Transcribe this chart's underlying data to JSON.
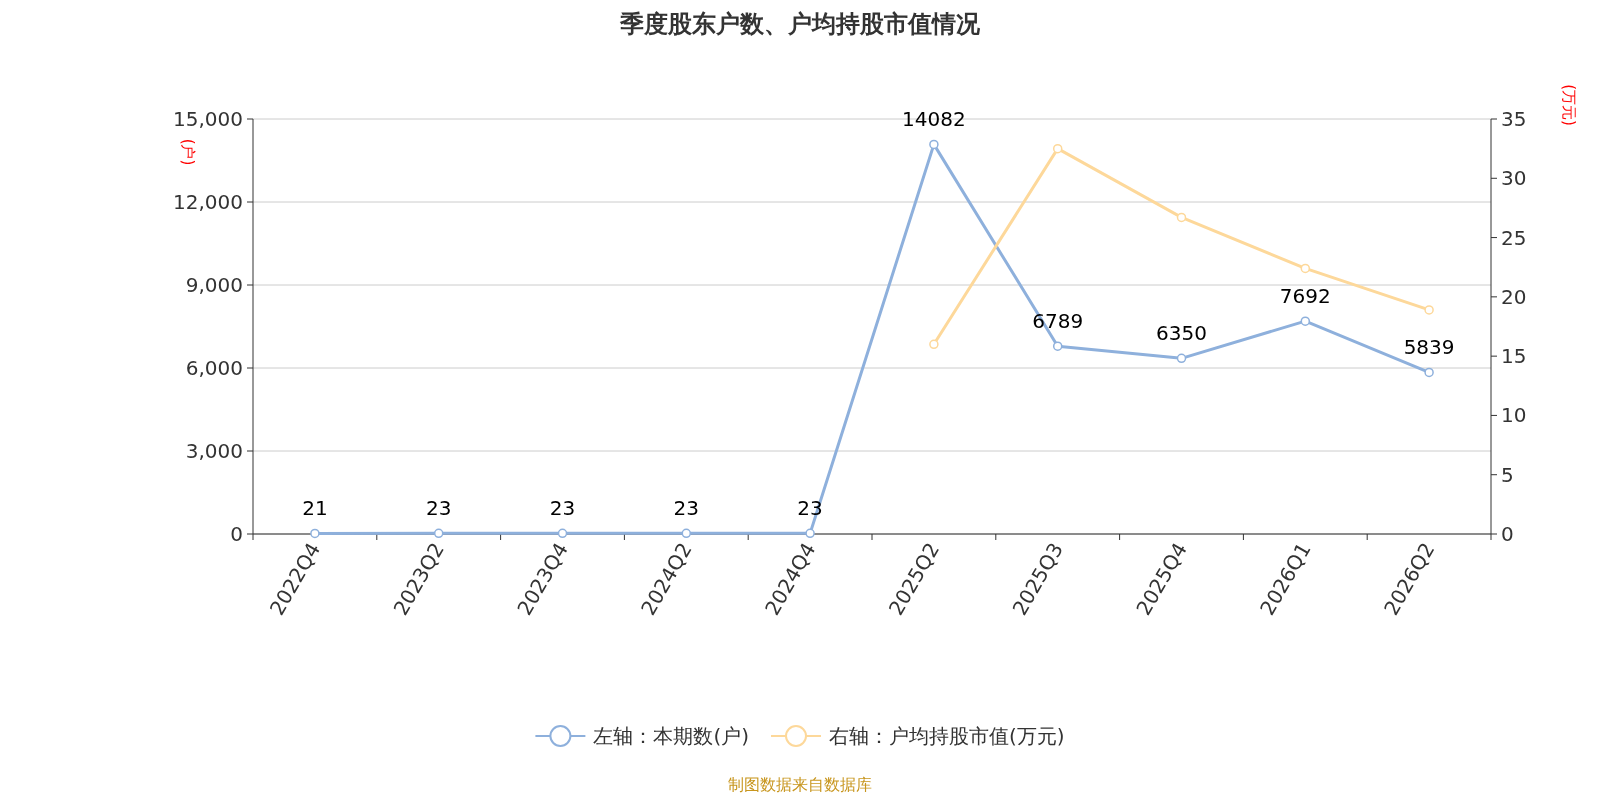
{
  "chart_data": {
    "type": "line",
    "title": "季度股东户数、户均持股市值情况",
    "ylabel": "(户)",
    "y2label": "(万元)",
    "annotations": [
      "制图数据来自数据库"
    ],
    "categories": [
      "2022Q4",
      "2023Q2",
      "2023Q4",
      "2024Q2",
      "2024Q4",
      "2025Q2",
      "2025Q3",
      "2025Q4",
      "2026Q1",
      "2026Q2"
    ],
    "series": [
      {
        "name": "左轴：本期数(户)",
        "color": "#8eb0dc",
        "values": [
          21,
          23,
          23,
          23,
          23,
          14082,
          6789,
          6350,
          7692,
          5839
        ],
        "value_labels": [
          "21",
          "23",
          "23",
          "23",
          "23",
          "14082",
          "6789",
          "6350",
          "7692",
          "5839"
        ]
      },
      {
        "name": "右轴：户均持股市值(万元)",
        "color": "#fdd89a",
        "axis": "y2",
        "values": [
          null,
          null,
          null,
          null,
          null,
          16.0,
          32.5,
          26.7,
          22.4,
          18.9
        ]
      }
    ],
    "ylim": [
      0,
      15000
    ],
    "yticks": [
      0,
      {
        "value": 3000,
        "label": "3,000"
      },
      {
        "value": 6000,
        "label": "6,000"
      },
      {
        "value": 9000,
        "label": "9,000"
      },
      {
        "value": 12000,
        "label": "12,000"
      },
      {
        "value": 15000,
        "label": "15,000"
      }
    ],
    "y2lim": [
      0,
      35
    ],
    "y2ticks": [
      0,
      5,
      10,
      15,
      20,
      25,
      30,
      35
    ],
    "grid": "y",
    "legend": "bottom",
    "marker": "circle",
    "line_style": "solid"
  }
}
